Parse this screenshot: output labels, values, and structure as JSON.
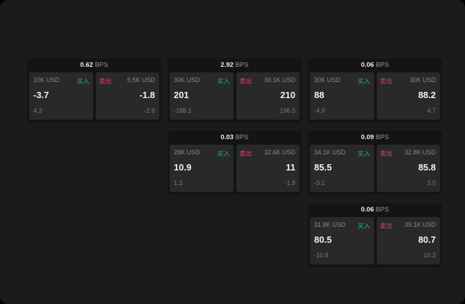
{
  "unit": "BPS",
  "buy_label": "买入",
  "sell_label": "卖出",
  "colors": {
    "buy": "#2fb36a",
    "sell": "#e0406a",
    "background": "#1b1b1b"
  },
  "cards": [
    {
      "spread": "0.62",
      "buy": {
        "amount": "10K USD",
        "price": "-3.7",
        "change": "4.3"
      },
      "sell": {
        "amount": "5.5K USD",
        "price": "-1.8",
        "change": "-2.6"
      }
    },
    {
      "spread": "2.92",
      "buy": {
        "amount": "30K USD",
        "price": "201",
        "change": "-188.1"
      },
      "sell": {
        "amount": "30.1K USD",
        "price": "210",
        "change": "196.5"
      }
    },
    {
      "spread": "0.06",
      "buy": {
        "amount": "30K USD",
        "price": "88",
        "change": "-4.9"
      },
      "sell": {
        "amount": "30K USD",
        "price": "88.2",
        "change": "4.7"
      }
    },
    {
      "spread": "0.03",
      "buy": {
        "amount": "28K USD",
        "price": "10.9",
        "change": "1.3"
      },
      "sell": {
        "amount": "32.6K USD",
        "price": "11",
        "change": "-1.8"
      }
    },
    {
      "spread": "0.09",
      "buy": {
        "amount": "34.1K USD",
        "price": "85.5",
        "change": "-3.1"
      },
      "sell": {
        "amount": "32.8K USD",
        "price": "85.8",
        "change": "3.0"
      }
    },
    {
      "spread": "0.06",
      "buy": {
        "amount": "31.8K USD",
        "price": "80.5",
        "change": "-10.8"
      },
      "sell": {
        "amount": "39.1K USD",
        "price": "80.7",
        "change": "10.2"
      }
    }
  ]
}
